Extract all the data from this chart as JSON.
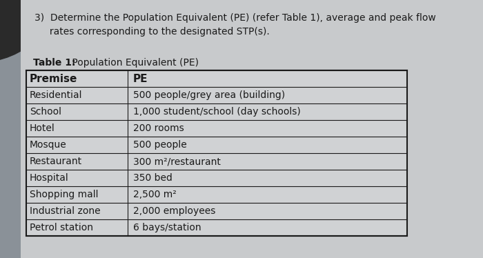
{
  "question_text_line1": "3)  Determine the Population Equivalent (PE) (refer Table 1), average and peak flow",
  "question_text_line2": "     rates corresponding to the designated STP(s).",
  "table_label_bold": "Table 1:",
  "table_label_normal": " Population Equivalent (PE)",
  "headers": [
    "Premise",
    "PE"
  ],
  "rows": [
    [
      "Residential",
      "500 people/grey area (building)"
    ],
    [
      "School",
      "1,000 student/school (day schools)"
    ],
    [
      "Hotel",
      "200 rooms"
    ],
    [
      "Mosque",
      "500 people"
    ],
    [
      "Restaurant",
      "300 m²/restaurant"
    ],
    [
      "Hospital",
      "350 bed"
    ],
    [
      "Shopping mall",
      "2,500 m²"
    ],
    [
      "Industrial zone",
      "2,000 employees"
    ],
    [
      "Petrol station",
      "6 bays/station"
    ]
  ],
  "bg_color": "#8a9198",
  "table_bg": "#d8dadc",
  "text_color": "#1a1a1a",
  "font_size": 10,
  "header_font_size": 11
}
